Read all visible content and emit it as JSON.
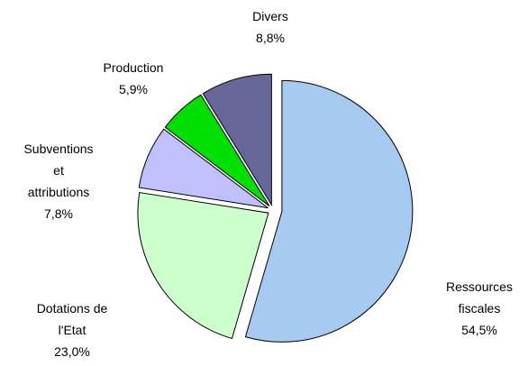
{
  "chart_data": {
    "type": "pie",
    "categories": [
      "Ressources\nfiscales",
      "Dotations de\nl'Etat",
      "Subventions\net\nattributions",
      "Production",
      "Divers"
    ],
    "values": [
      54.5,
      23.0,
      7.8,
      5.9,
      8.8
    ],
    "value_labels": [
      "54,5%",
      "23,0%",
      "7,8%",
      "5,9%",
      "8,8%"
    ],
    "colors": [
      "#a6caf0",
      "#ccffcc",
      "#c0c0ff",
      "#00e000",
      "#666699"
    ]
  }
}
